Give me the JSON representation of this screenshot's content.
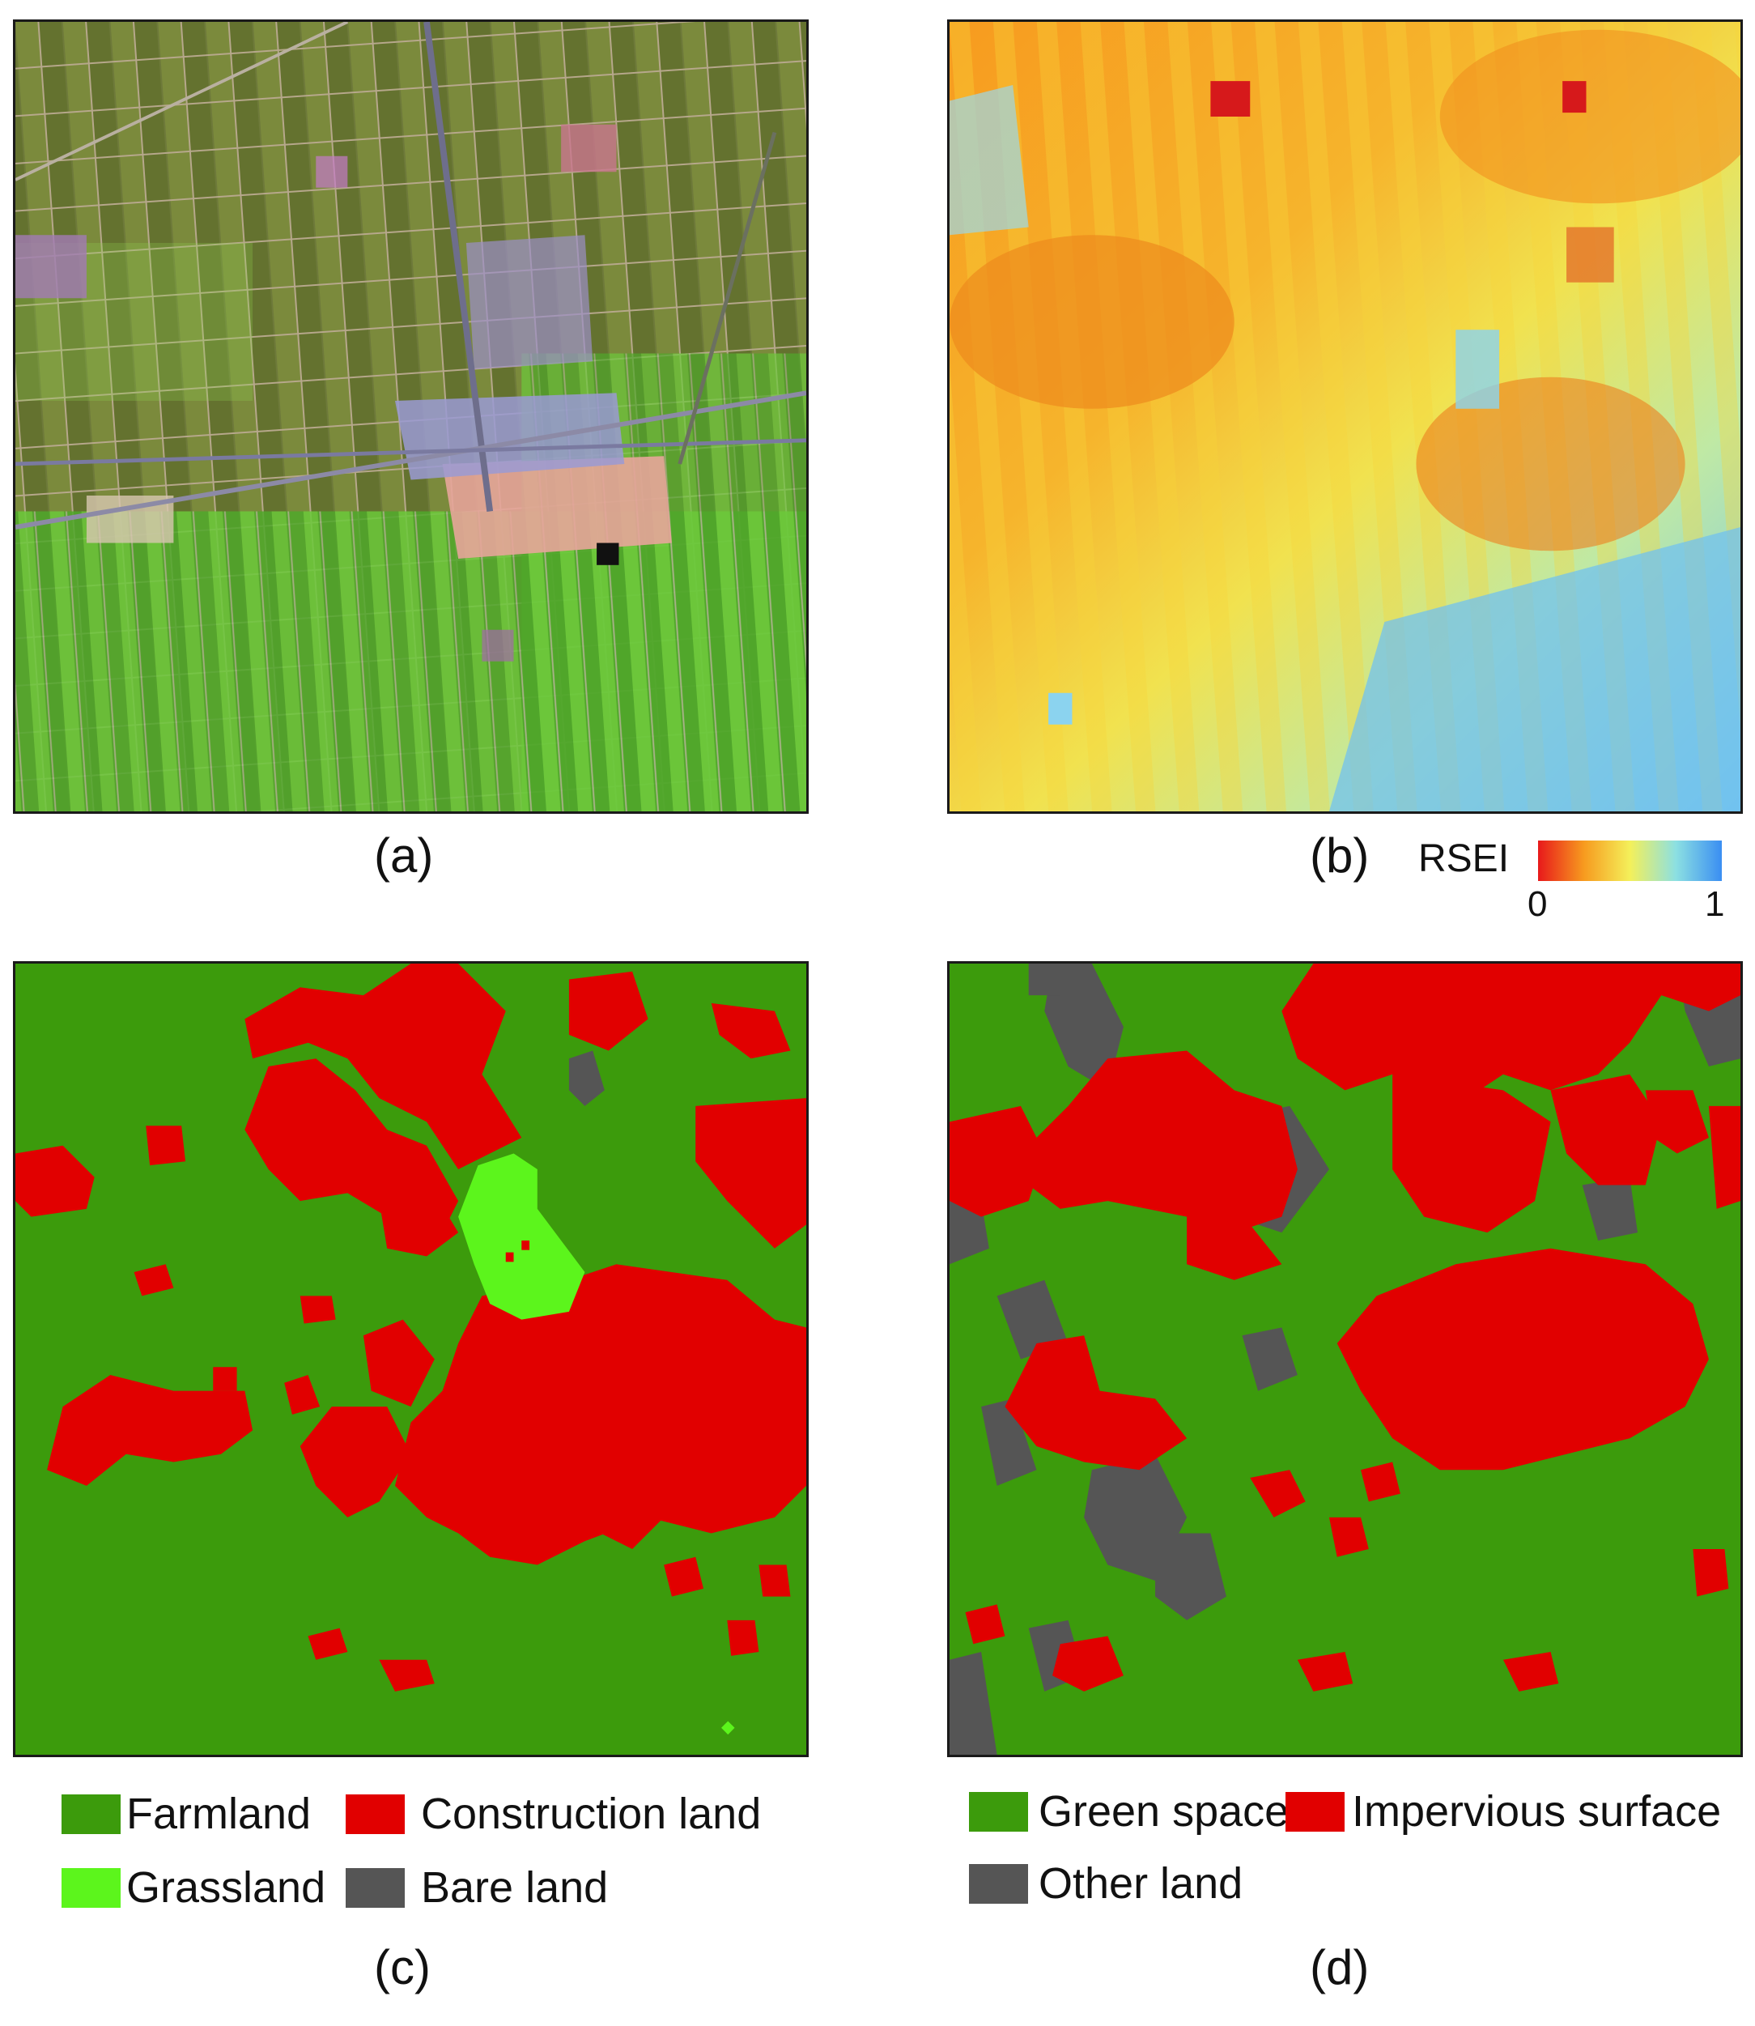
{
  "panels": {
    "a": {
      "caption": "(a)"
    },
    "b": {
      "caption": "(b)"
    },
    "c": {
      "caption": "(c)"
    },
    "d": {
      "caption": "(d)"
    }
  },
  "rsei_legend": {
    "title": "RSEI",
    "min_label": "0",
    "max_label": "1",
    "colors": [
      "#e8191b",
      "#f79b1f",
      "#f4f05a",
      "#8ce0e2",
      "#3a8ef2"
    ]
  },
  "legend_c": {
    "items": [
      {
        "label": "Farmland",
        "color": "#3c9b0c"
      },
      {
        "label": "Construction land",
        "color": "#e10000"
      },
      {
        "label": "Grassland",
        "color": "#5cf51c"
      },
      {
        "label": "Bare land",
        "color": "#555555"
      }
    ]
  },
  "legend_d": {
    "items": [
      {
        "label": "Green space",
        "color": "#3c9b0c"
      },
      {
        "label": "Impervious surface",
        "color": "#e10000"
      },
      {
        "label": "Other land",
        "color": "#555555"
      }
    ]
  }
}
